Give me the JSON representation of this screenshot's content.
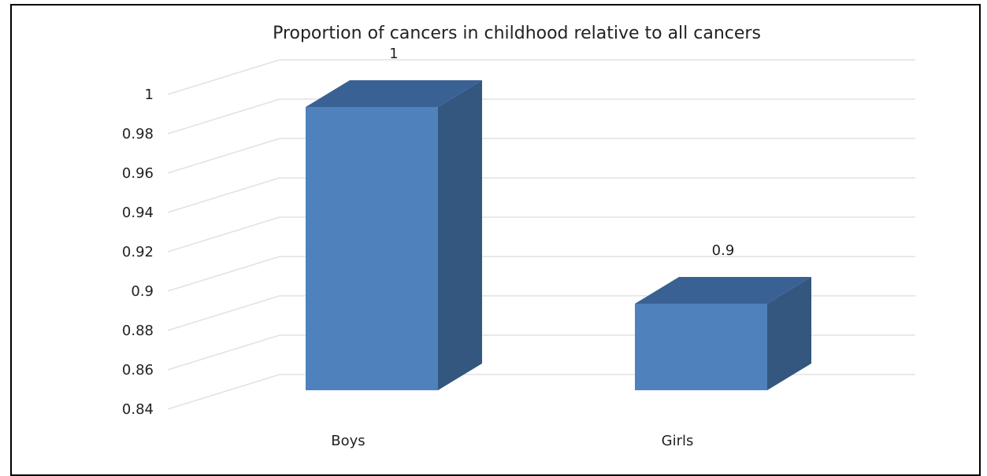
{
  "chart_data": {
    "type": "bar",
    "title": "Proportion of cancers in childhood relative to all cancers",
    "xlabel": "",
    "ylabel": "",
    "categories": [
      "Boys",
      "Girls"
    ],
    "values": [
      1,
      0.9
    ],
    "data_labels": [
      "1",
      "0.9"
    ],
    "ylim": [
      0.84,
      1.0
    ],
    "yticks": [
      "0.84",
      "0.86",
      "0.88",
      "0.9",
      "0.92",
      "0.94",
      "0.96",
      "0.98",
      "1"
    ],
    "grid": true,
    "three_d": true,
    "legend": "none",
    "colors": {
      "bar_front": "#4f81bd",
      "bar_side": "#33577f",
      "bar_top": "#3a6194",
      "grid": "#e2e2e2",
      "text": "#222222"
    }
  }
}
